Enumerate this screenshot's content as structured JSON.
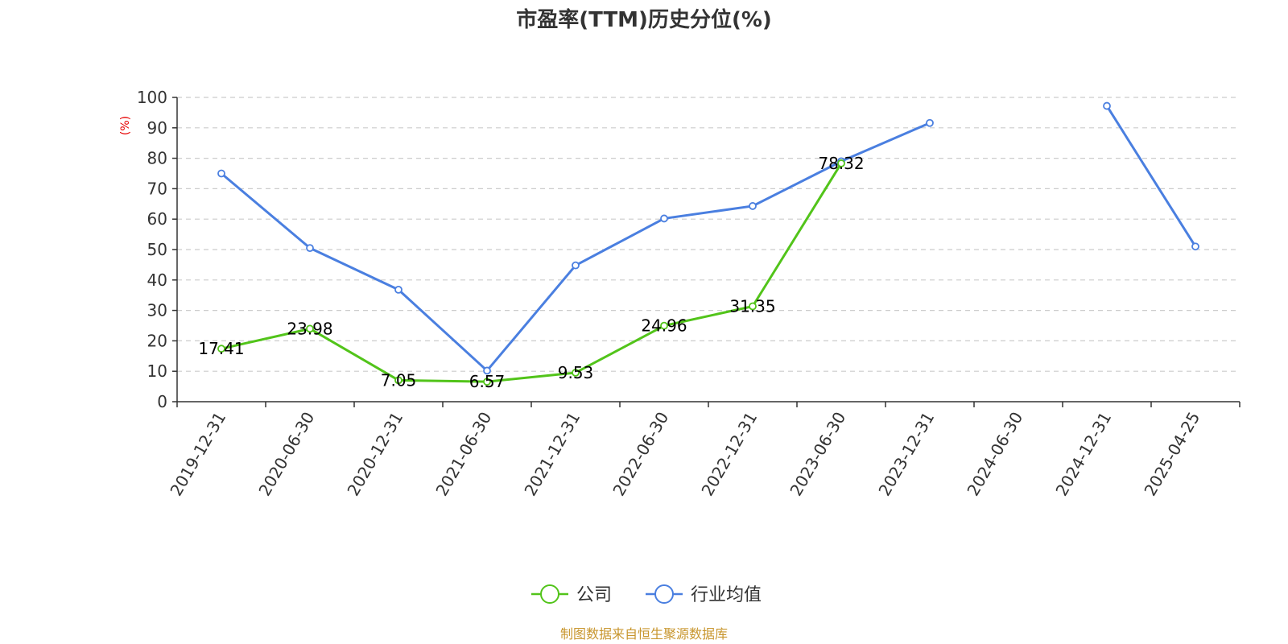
{
  "chart_data": {
    "type": "line",
    "title": "市盈率(TTM)历史分位(%)",
    "ylabel": "(%)",
    "ylim": [
      0,
      100
    ],
    "yticks": [
      0,
      10,
      20,
      30,
      40,
      50,
      60,
      70,
      80,
      90,
      100
    ],
    "grid": true,
    "categories": [
      "2019-12-31",
      "2020-06-30",
      "2020-12-31",
      "2021-06-30",
      "2021-12-31",
      "2022-06-30",
      "2022-12-31",
      "2023-06-30",
      "2023-12-31",
      "2024-06-30",
      "2024-12-31",
      "2025-04-25"
    ],
    "series": [
      {
        "name": "公司",
        "color": "#52c41a",
        "values": [
          17.41,
          23.98,
          7.05,
          6.57,
          9.53,
          24.96,
          31.35,
          78.32,
          null,
          null,
          null,
          null
        ],
        "labels": [
          "17.41",
          "23.98",
          "7.05",
          "6.57",
          "9.53",
          "24.96",
          "31.35",
          "78.32",
          null,
          null,
          null,
          null
        ]
      },
      {
        "name": "行业均值",
        "color": "#4a7fe0",
        "values": [
          75,
          50.5,
          36.8,
          10.2,
          44.8,
          60.2,
          64.3,
          79.0,
          91.6,
          null,
          97.2,
          51.0
        ],
        "labels": [
          null,
          null,
          null,
          null,
          null,
          null,
          null,
          null,
          null,
          null,
          null,
          null
        ]
      }
    ],
    "legend_position": "bottom-center",
    "source": "制图数据来自恒生聚源数据库",
    "source_color": "#c8962e",
    "unit_color": "#e60000",
    "axis_color": "#333333",
    "grid_color": "#cccccc"
  }
}
